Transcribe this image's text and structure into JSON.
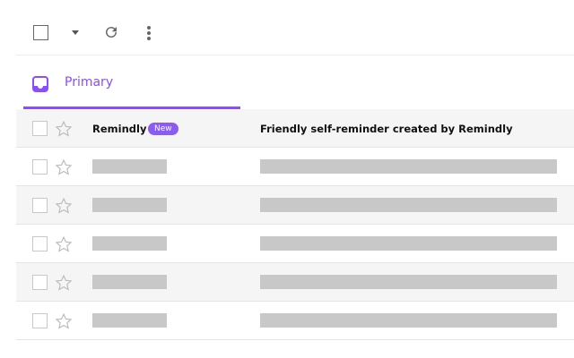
{
  "toolbar": {
    "icons": [
      "checkbox",
      "chevron-down-icon",
      "refresh-icon",
      "more-vert-icon"
    ]
  },
  "tabs": [
    {
      "label": "Primary",
      "active": true,
      "icon": "inbox-icon"
    }
  ],
  "accent_color": "#8a4dff",
  "messages": [
    {
      "sender": "Remindly",
      "badge": "New",
      "subject": "Friendly self-reminder created by Remindly"
    }
  ],
  "placeholder_rows": 5
}
